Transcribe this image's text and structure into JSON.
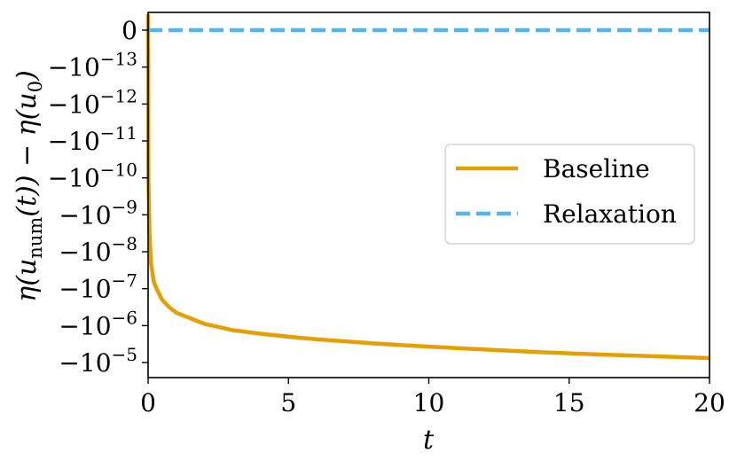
{
  "chart_data": {
    "type": "line",
    "xlabel": "t",
    "ylabel": "η(u_num(t)) − η(u_0)",
    "ylabel_parts": {
      "a": "η(u",
      "sub": "num",
      "b": "(t)) − η(u",
      "sub2": "0",
      "c": ")"
    },
    "xlim": [
      0,
      20
    ],
    "x_ticks": [
      0,
      5,
      10,
      15,
      20
    ],
    "y_scale": "symlog (negative)",
    "y_ticks": [
      {
        "text": "0",
        "exp": ""
      },
      {
        "text": "−10",
        "exp": "−13"
      },
      {
        "text": "−10",
        "exp": "−12"
      },
      {
        "text": "−10",
        "exp": "−11"
      },
      {
        "text": "−10",
        "exp": "−10"
      },
      {
        "text": "−10",
        "exp": "−9"
      },
      {
        "text": "−10",
        "exp": "−8"
      },
      {
        "text": "−10",
        "exp": "−7"
      },
      {
        "text": "−10",
        "exp": "−6"
      },
      {
        "text": "−10",
        "exp": "−5"
      }
    ],
    "grid": false,
    "legend_position": "right",
    "series": [
      {
        "name": "Baseline",
        "color": "#E69F00",
        "style": "solid",
        "x": [
          0,
          0.01,
          0.05,
          0.1,
          0.2,
          0.3,
          0.5,
          0.75,
          1,
          1.5,
          2,
          3,
          4,
          5,
          6,
          8,
          10,
          12,
          14,
          16,
          18,
          20
        ],
        "log10_neg_y": [
          -15.2,
          -10.0,
          -8.5,
          -7.7,
          -7.2,
          -7.0,
          -6.7,
          -6.5,
          -6.35,
          -6.2,
          -6.05,
          -5.88,
          -5.78,
          -5.7,
          -5.63,
          -5.52,
          -5.43,
          -5.35,
          -5.28,
          -5.22,
          -5.17,
          -5.12
        ]
      },
      {
        "name": "Relaxation",
        "color": "#56B4E9",
        "style": "dashed",
        "x": [
          0,
          20
        ],
        "y": [
          0,
          0
        ]
      }
    ]
  }
}
